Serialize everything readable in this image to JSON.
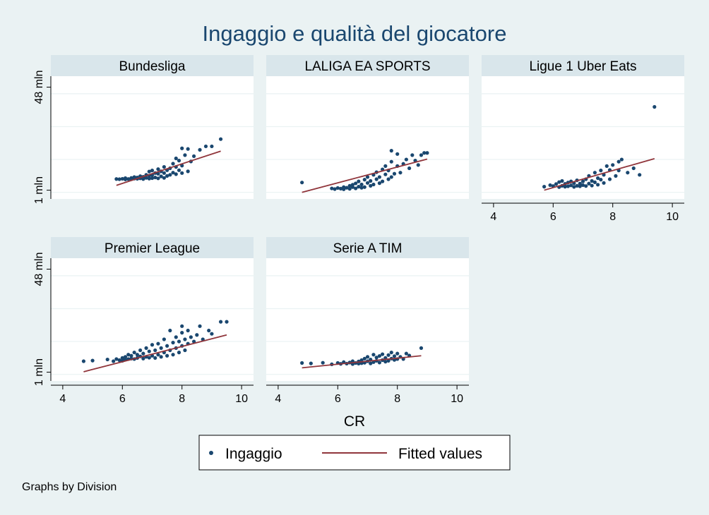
{
  "chart_data": {
    "type": "scatter",
    "title": "Ingaggio e qualità del giocatore",
    "xlabel": "CR",
    "x_ticks": [
      4,
      6,
      8,
      10
    ],
    "y_ticks": [
      {
        "value": 1,
        "label": "1 mln"
      },
      {
        "value": 48,
        "label": "48 mln"
      }
    ],
    "xlim": [
      3.6,
      10.4
    ],
    "ylim": [
      -3,
      53
    ],
    "legend": {
      "position": "bottom",
      "items": [
        "Ingaggio",
        "Fitted values"
      ]
    },
    "note": "Graphs by Division",
    "colors": {
      "points": "#1a476f",
      "fit": "#90353b",
      "background": "#eaf2f3",
      "strip": "#d9e6eb"
    },
    "panels": [
      {
        "name": "Bundesliga",
        "fit": {
          "x": [
            5.8,
            9.3
          ],
          "y": [
            3.2,
            18.8
          ]
        },
        "points": [
          [
            5.8,
            6.1
          ],
          [
            5.9,
            6.0
          ],
          [
            6.0,
            6.2
          ],
          [
            6.1,
            5.9
          ],
          [
            6.1,
            6.5
          ],
          [
            6.2,
            6.1
          ],
          [
            6.3,
            6.6
          ],
          [
            6.3,
            6.0
          ],
          [
            6.4,
            6.3
          ],
          [
            6.4,
            7.0
          ],
          [
            6.5,
            6.2
          ],
          [
            6.5,
            6.8
          ],
          [
            6.6,
            6.4
          ],
          [
            6.6,
            7.4
          ],
          [
            6.7,
            6.1
          ],
          [
            6.7,
            7.1
          ],
          [
            6.8,
            6.6
          ],
          [
            6.8,
            8.0
          ],
          [
            6.9,
            6.3
          ],
          [
            6.9,
            7.6
          ],
          [
            6.9,
            9.5
          ],
          [
            7.0,
            6.5
          ],
          [
            7.0,
            7.9
          ],
          [
            7.0,
            10.0
          ],
          [
            7.1,
            6.8
          ],
          [
            7.1,
            8.8
          ],
          [
            7.2,
            6.4
          ],
          [
            7.2,
            8.5
          ],
          [
            7.2,
            10.6
          ],
          [
            7.3,
            7.3
          ],
          [
            7.3,
            9.6
          ],
          [
            7.4,
            6.6
          ],
          [
            7.4,
            8.8
          ],
          [
            7.4,
            11.6
          ],
          [
            7.5,
            7.5
          ],
          [
            7.5,
            10.1
          ],
          [
            7.6,
            8.0
          ],
          [
            7.6,
            11.0
          ],
          [
            7.7,
            9.0
          ],
          [
            7.7,
            13.1
          ],
          [
            7.8,
            8.3
          ],
          [
            7.8,
            11.6
          ],
          [
            7.8,
            15.5
          ],
          [
            7.9,
            10.1
          ],
          [
            7.9,
            14.5
          ],
          [
            8.0,
            8.8
          ],
          [
            8.0,
            20.1
          ],
          [
            8.0,
            12.2
          ],
          [
            8.1,
            17.0
          ],
          [
            8.2,
            19.8
          ],
          [
            8.2,
            9.6
          ],
          [
            8.3,
            14.1
          ],
          [
            8.4,
            16.5
          ],
          [
            8.6,
            19.4
          ],
          [
            8.8,
            21.0
          ],
          [
            9.0,
            21.0
          ],
          [
            9.3,
            24.3
          ]
        ]
      },
      {
        "name": "LALIGA EA SPORTS",
        "fit": {
          "x": [
            4.8,
            9.0
          ],
          "y": [
            0.0,
            15.2
          ]
        },
        "points": [
          [
            4.8,
            4.5
          ],
          [
            5.8,
            1.8
          ],
          [
            5.9,
            1.5
          ],
          [
            6.0,
            2.0
          ],
          [
            6.1,
            1.7
          ],
          [
            6.2,
            2.4
          ],
          [
            6.2,
            1.4
          ],
          [
            6.3,
            2.1
          ],
          [
            6.4,
            3.0
          ],
          [
            6.4,
            1.6
          ],
          [
            6.5,
            2.4
          ],
          [
            6.5,
            3.5
          ],
          [
            6.6,
            1.8
          ],
          [
            6.6,
            4.1
          ],
          [
            6.7,
            2.6
          ],
          [
            6.7,
            5.0
          ],
          [
            6.8,
            2.1
          ],
          [
            6.8,
            3.6
          ],
          [
            6.9,
            5.8
          ],
          [
            6.9,
            2.4
          ],
          [
            7.0,
            4.3
          ],
          [
            7.0,
            7.0
          ],
          [
            7.1,
            3.0
          ],
          [
            7.1,
            5.2
          ],
          [
            7.2,
            8.0
          ],
          [
            7.2,
            3.6
          ],
          [
            7.3,
            6.0
          ],
          [
            7.3,
            9.2
          ],
          [
            7.4,
            4.2
          ],
          [
            7.4,
            7.0
          ],
          [
            7.5,
            10.5
          ],
          [
            7.5,
            5.0
          ],
          [
            7.6,
            8.2
          ],
          [
            7.6,
            12.0
          ],
          [
            7.7,
            6.0
          ],
          [
            7.7,
            10.0
          ],
          [
            7.8,
            7.0
          ],
          [
            7.8,
            14.0
          ],
          [
            7.8,
            19.0
          ],
          [
            7.9,
            8.5
          ],
          [
            8.0,
            12.0
          ],
          [
            8.0,
            17.5
          ],
          [
            8.1,
            9.0
          ],
          [
            8.2,
            13.0
          ],
          [
            8.3,
            15.0
          ],
          [
            8.4,
            11.0
          ],
          [
            8.5,
            17.0
          ],
          [
            8.6,
            14.5
          ],
          [
            8.7,
            12.5
          ],
          [
            8.8,
            17.0
          ],
          [
            8.9,
            18.0
          ],
          [
            9.0,
            18.0
          ]
        ]
      },
      {
        "name": "Ligue 1 Uber Eats",
        "fit": {
          "x": [
            5.7,
            9.4
          ],
          "y": [
            1.0,
            15.4
          ]
        },
        "points": [
          [
            5.7,
            2.6
          ],
          [
            5.9,
            3.3
          ],
          [
            6.0,
            2.9
          ],
          [
            6.1,
            3.8
          ],
          [
            6.2,
            2.4
          ],
          [
            6.2,
            4.7
          ],
          [
            6.3,
            3.0
          ],
          [
            6.3,
            5.2
          ],
          [
            6.4,
            2.6
          ],
          [
            6.4,
            3.9
          ],
          [
            6.5,
            4.5
          ],
          [
            6.5,
            2.8
          ],
          [
            6.6,
            3.2
          ],
          [
            6.6,
            5.0
          ],
          [
            6.7,
            2.5
          ],
          [
            6.7,
            4.2
          ],
          [
            6.8,
            3.0
          ],
          [
            6.8,
            5.5
          ],
          [
            6.9,
            2.8
          ],
          [
            6.9,
            4.0
          ],
          [
            7.0,
            3.3
          ],
          [
            7.0,
            5.0
          ],
          [
            7.1,
            2.9
          ],
          [
            7.1,
            6.0
          ],
          [
            7.2,
            4.0
          ],
          [
            7.2,
            7.5
          ],
          [
            7.3,
            3.1
          ],
          [
            7.3,
            5.2
          ],
          [
            7.4,
            4.6
          ],
          [
            7.4,
            9.0
          ],
          [
            7.5,
            3.5
          ],
          [
            7.5,
            6.5
          ],
          [
            7.6,
            5.8
          ],
          [
            7.6,
            10.0
          ],
          [
            7.7,
            4.3
          ],
          [
            7.7,
            8.0
          ],
          [
            7.8,
            12.0
          ],
          [
            7.9,
            6.0
          ],
          [
            7.9,
            10.2
          ],
          [
            8.0,
            12.5
          ],
          [
            8.1,
            7.5
          ],
          [
            8.2,
            10.0
          ],
          [
            8.2,
            14.0
          ],
          [
            8.3,
            15.0
          ],
          [
            8.5,
            9.0
          ],
          [
            8.7,
            11.0
          ],
          [
            8.9,
            8.0
          ],
          [
            9.4,
            39.0
          ]
        ]
      },
      {
        "name": "Premier League",
        "fit": {
          "x": [
            4.7,
            9.5
          ],
          "y": [
            1.2,
            18.0
          ]
        },
        "points": [
          [
            4.7,
            6.0
          ],
          [
            5.0,
            6.3
          ],
          [
            5.5,
            6.8
          ],
          [
            5.7,
            6.0
          ],
          [
            5.8,
            7.0
          ],
          [
            5.9,
            6.5
          ],
          [
            6.0,
            6.2
          ],
          [
            6.0,
            7.5
          ],
          [
            6.1,
            8.0
          ],
          [
            6.1,
            6.8
          ],
          [
            6.2,
            7.0
          ],
          [
            6.2,
            9.0
          ],
          [
            6.3,
            7.2
          ],
          [
            6.3,
            8.5
          ],
          [
            6.4,
            7.0
          ],
          [
            6.4,
            10.0
          ],
          [
            6.5,
            7.5
          ],
          [
            6.5,
            9.0
          ],
          [
            6.6,
            8.2
          ],
          [
            6.6,
            11.0
          ],
          [
            6.7,
            7.2
          ],
          [
            6.7,
            9.5
          ],
          [
            6.8,
            8.0
          ],
          [
            6.8,
            12.0
          ],
          [
            6.9,
            7.6
          ],
          [
            6.9,
            10.5
          ],
          [
            7.0,
            8.5
          ],
          [
            7.0,
            13.5
          ],
          [
            7.1,
            7.5
          ],
          [
            7.1,
            11.0
          ],
          [
            7.2,
            9.0
          ],
          [
            7.2,
            14.0
          ],
          [
            7.3,
            8.0
          ],
          [
            7.3,
            12.0
          ],
          [
            7.4,
            10.0
          ],
          [
            7.4,
            16.0
          ],
          [
            7.5,
            8.5
          ],
          [
            7.5,
            13.0
          ],
          [
            7.6,
            11.0
          ],
          [
            7.6,
            20.0
          ],
          [
            7.7,
            9.0
          ],
          [
            7.7,
            14.5
          ],
          [
            7.8,
            12.0
          ],
          [
            7.8,
            17.0
          ],
          [
            7.9,
            10.0
          ],
          [
            7.9,
            15.0
          ],
          [
            8.0,
            13.0
          ],
          [
            8.0,
            22.0
          ],
          [
            8.0,
            19.0
          ],
          [
            8.1,
            11.0
          ],
          [
            8.1,
            16.0
          ],
          [
            8.2,
            14.0
          ],
          [
            8.2,
            20.0
          ],
          [
            8.3,
            17.0
          ],
          [
            8.4,
            15.0
          ],
          [
            8.5,
            18.0
          ],
          [
            8.6,
            22.0
          ],
          [
            8.7,
            16.0
          ],
          [
            8.9,
            20.0
          ],
          [
            9.0,
            18.5
          ],
          [
            9.3,
            24.0
          ],
          [
            9.5,
            24.0
          ]
        ]
      },
      {
        "name": "Serie A TIM",
        "fit": {
          "x": [
            4.8,
            8.8
          ],
          "y": [
            3.0,
            8.5
          ]
        },
        "points": [
          [
            4.8,
            5.2
          ],
          [
            5.1,
            5.0
          ],
          [
            5.5,
            5.3
          ],
          [
            5.8,
            4.6
          ],
          [
            6.0,
            5.2
          ],
          [
            6.1,
            4.8
          ],
          [
            6.2,
            5.6
          ],
          [
            6.3,
            4.9
          ],
          [
            6.4,
            5.4
          ],
          [
            6.5,
            6.0
          ],
          [
            6.5,
            4.7
          ],
          [
            6.6,
            5.2
          ],
          [
            6.7,
            5.9
          ],
          [
            6.7,
            4.9
          ],
          [
            6.8,
            6.5
          ],
          [
            6.8,
            5.1
          ],
          [
            6.9,
            7.2
          ],
          [
            6.9,
            5.3
          ],
          [
            7.0,
            6.0
          ],
          [
            7.0,
            8.0
          ],
          [
            7.1,
            5.0
          ],
          [
            7.1,
            6.8
          ],
          [
            7.2,
            5.6
          ],
          [
            7.2,
            9.0
          ],
          [
            7.3,
            6.2
          ],
          [
            7.3,
            7.7
          ],
          [
            7.4,
            5.4
          ],
          [
            7.4,
            8.4
          ],
          [
            7.5,
            6.5
          ],
          [
            7.5,
            9.2
          ],
          [
            7.6,
            5.8
          ],
          [
            7.6,
            7.5
          ],
          [
            7.7,
            8.8
          ],
          [
            7.7,
            6.2
          ],
          [
            7.8,
            7.2
          ],
          [
            7.8,
            10.0
          ],
          [
            7.9,
            6.6
          ],
          [
            7.9,
            8.3
          ],
          [
            8.0,
            9.5
          ],
          [
            8.0,
            7.0
          ],
          [
            8.1,
            8.0
          ],
          [
            8.2,
            7.0
          ],
          [
            8.3,
            9.5
          ],
          [
            8.4,
            8.6
          ],
          [
            8.8,
            12.0
          ]
        ]
      }
    ]
  }
}
